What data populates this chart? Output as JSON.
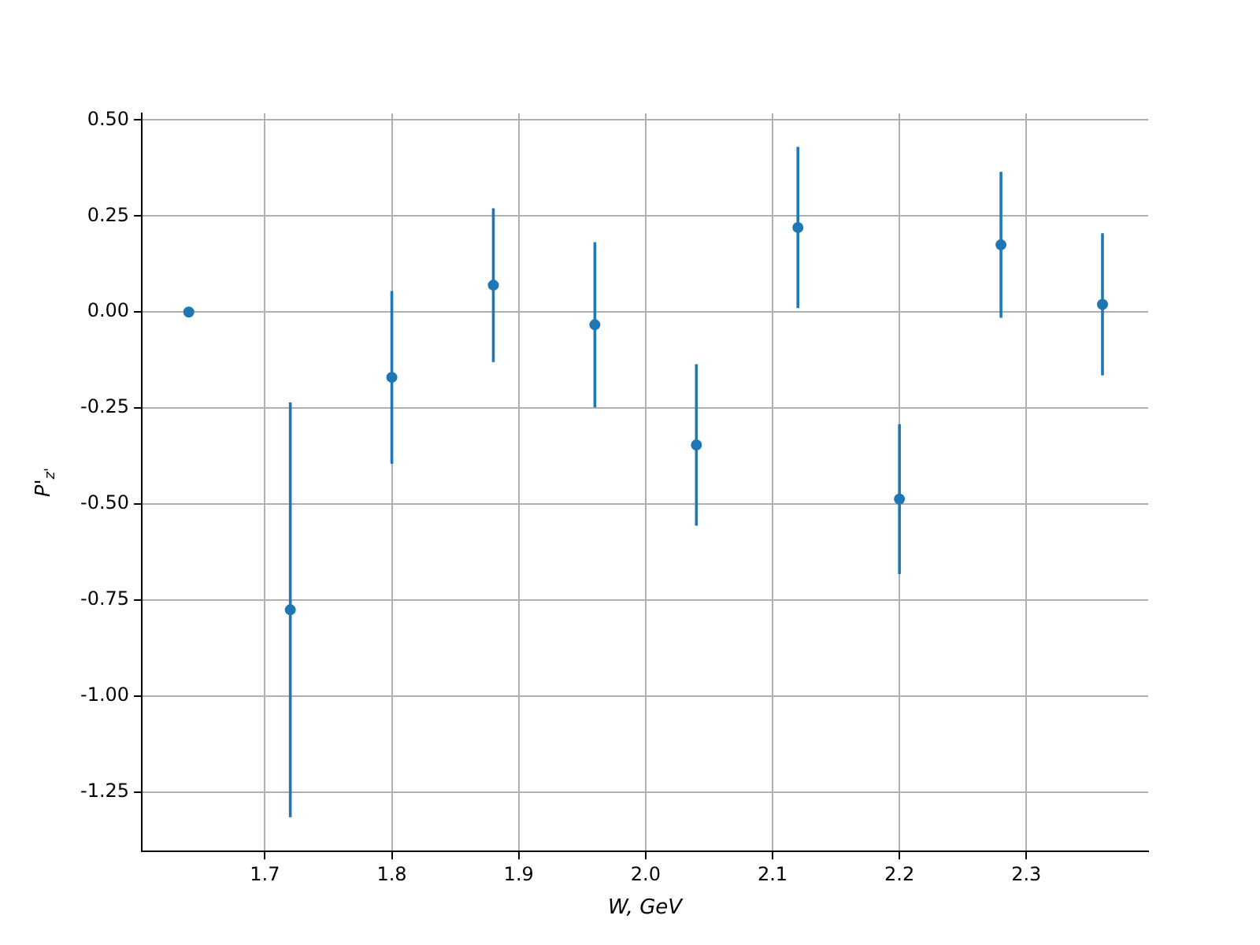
{
  "chart_data": {
    "type": "scatter",
    "xlabel": "W, GeV",
    "ylabel": "P'$_{z'}$",
    "x": [
      1.64,
      1.72,
      1.8,
      1.88,
      1.96,
      2.04,
      2.12,
      2.2,
      2.28,
      2.36
    ],
    "series": [
      {
        "color": "#1f77b4",
        "values": [
          0,
          -0.775,
          -0.17,
          0.07,
          -0.033,
          -0.346,
          0.22,
          -0.487,
          0.175,
          0.02
        ],
        "errors": [
          null,
          0.54,
          0.225,
          0.2,
          0.215,
          0.21,
          0.21,
          0.195,
          0.19,
          0.185
        ]
      }
    ],
    "xlim": [
      1.603,
      2.396
    ],
    "ylim": [
      -1.404,
      0.517
    ],
    "xticks": [
      1.7,
      1.8,
      1.9,
      {
        "value": 2,
        "label": "2.0"
      },
      2.1,
      2.2,
      2.3
    ],
    "yticks": [
      -1.25,
      {
        "value": -1,
        "label": "-1.00"
      },
      -0.75,
      {
        "value": -0.5,
        "label": "-0.50"
      },
      -0.25,
      {
        "value": 0,
        "label": "0.00"
      },
      0.25,
      {
        "value": 0.5,
        "label": "0.50"
      }
    ],
    "grid": true,
    "marker": "circle",
    "legend": false
  }
}
